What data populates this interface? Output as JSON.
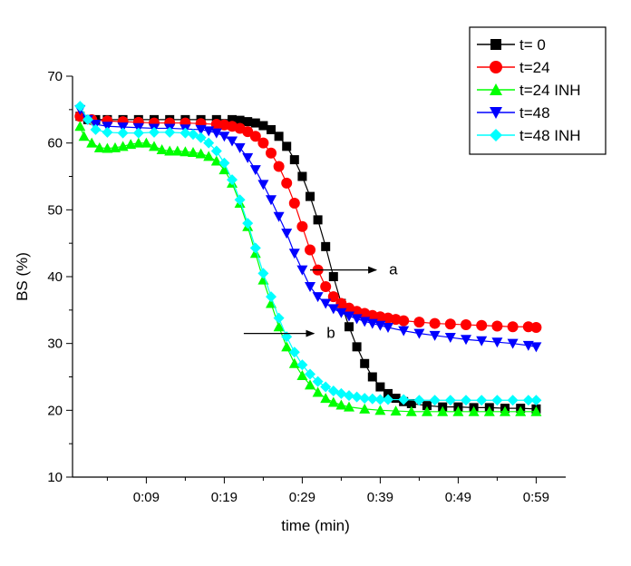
{
  "chart_data": {
    "type": "scatter",
    "xlabel": "time (min)",
    "ylabel": "BS (%)",
    "xlim": [
      0,
      60
    ],
    "ylim": [
      10,
      70
    ],
    "y_ticks": [
      10,
      20,
      30,
      40,
      50,
      60,
      70
    ],
    "x_ticks": [
      {
        "value": 9,
        "label": "0:09"
      },
      {
        "value": 19,
        "label": "0:19"
      },
      {
        "value": 29,
        "label": "0:29"
      },
      {
        "value": 39,
        "label": "0:39"
      },
      {
        "value": 49,
        "label": "0:49"
      },
      {
        "value": 59,
        "label": "0:59"
      }
    ],
    "grid": false,
    "legend_position": "top-right",
    "series": [
      {
        "name": "t= 0",
        "color": "#000000",
        "marker": "square",
        "x": [
          0.5,
          1.5,
          2.5,
          4,
          6,
          8,
          10,
          12,
          14,
          16,
          18,
          20,
          21,
          22,
          23,
          24,
          25,
          26,
          27,
          28,
          29,
          30,
          31,
          32,
          33,
          34,
          35,
          36,
          37,
          38,
          39,
          40,
          41,
          42,
          43,
          45,
          47,
          49,
          51,
          53,
          55,
          57,
          59
        ],
        "y": [
          64,
          63.5,
          63.5,
          63.5,
          63.5,
          63.5,
          63.5,
          63.5,
          63.5,
          63.5,
          63.5,
          63.5,
          63.4,
          63.2,
          63,
          62.6,
          62,
          61,
          59.5,
          57.5,
          55,
          52,
          48.5,
          44.5,
          40,
          36,
          32.5,
          29.5,
          27,
          25,
          23.5,
          22.5,
          21.8,
          21.3,
          21,
          20.7,
          20.5,
          20.5,
          20.4,
          20.4,
          20.3,
          20.3,
          20.2
        ]
      },
      {
        "name": "t=24",
        "color": "#ff0000",
        "marker": "circle",
        "x": [
          0.5,
          2,
          4,
          6,
          8,
          10,
          12,
          14,
          16,
          18,
          19,
          20,
          21,
          22,
          23,
          24,
          25,
          26,
          27,
          28,
          29,
          30,
          31,
          32,
          33,
          34,
          35,
          36,
          37,
          38,
          39,
          40,
          41,
          42,
          44,
          46,
          48,
          50,
          52,
          54,
          56,
          58,
          59
        ],
        "y": [
          64,
          63.5,
          63.3,
          63.2,
          63.1,
          63,
          63,
          63,
          62.9,
          62.8,
          62.7,
          62.5,
          62.2,
          61.7,
          61,
          60,
          58.5,
          56.5,
          54,
          51,
          47.5,
          44,
          41,
          38.5,
          37,
          36,
          35.3,
          34.8,
          34.5,
          34.2,
          34,
          33.8,
          33.6,
          33.4,
          33.2,
          33,
          32.9,
          32.8,
          32.7,
          32.6,
          32.5,
          32.5,
          32.4
        ]
      },
      {
        "name": "t=24 INH",
        "color": "#00ff00",
        "marker": "triangle-up",
        "x": [
          0.5,
          1,
          2,
          3,
          4,
          5,
          6,
          7,
          8,
          9,
          10,
          11,
          12,
          13,
          14,
          15,
          16,
          17,
          18,
          19,
          20,
          21,
          22,
          23,
          24,
          25,
          26,
          27,
          28,
          29,
          30,
          31,
          32,
          33,
          34,
          35,
          37,
          39,
          41,
          43,
          45,
          47,
          49,
          51,
          53,
          55,
          57,
          59
        ],
        "y": [
          62.5,
          61,
          60,
          59.3,
          59.2,
          59.3,
          59.5,
          59.8,
          60,
          60,
          59.5,
          59,
          58.8,
          58.8,
          58.7,
          58.6,
          58.4,
          58,
          57.3,
          56,
          54,
          51,
          47.5,
          43.5,
          39.5,
          36,
          32.5,
          29.5,
          27,
          25.2,
          23.8,
          22.7,
          21.8,
          21.2,
          20.8,
          20.5,
          20.2,
          20,
          19.9,
          19.8,
          19.8,
          19.8,
          19.8,
          19.8,
          19.8,
          19.8,
          19.8,
          19.8
        ]
      },
      {
        "name": "t=48",
        "color": "#0000ff",
        "marker": "triangle-down",
        "x": [
          0.5,
          1.5,
          2.5,
          4,
          6,
          8,
          10,
          12,
          14,
          16,
          17,
          18,
          19,
          20,
          21,
          22,
          23,
          24,
          25,
          26,
          27,
          28,
          29,
          30,
          31,
          32,
          33,
          34,
          35,
          36,
          37,
          38,
          39,
          40,
          42,
          44,
          46,
          48,
          50,
          52,
          54,
          56,
          58,
          59
        ],
        "y": [
          65,
          63.5,
          62.8,
          62.5,
          62.4,
          62.3,
          62.2,
          62.2,
          62.1,
          62,
          61.8,
          61.5,
          61,
          60.3,
          59.3,
          57.8,
          56,
          53.8,
          51.5,
          49,
          46.5,
          43.5,
          41,
          38.5,
          37,
          36,
          35.2,
          34.6,
          34.1,
          33.7,
          33.3,
          33,
          32.7,
          32.4,
          31.9,
          31.5,
          31.2,
          30.9,
          30.6,
          30.4,
          30.2,
          30,
          29.7,
          29.5
        ]
      },
      {
        "name": "t=48 INH",
        "color": "#00ffff",
        "marker": "diamond",
        "x": [
          0.5,
          1.5,
          2.5,
          4,
          6,
          8,
          10,
          12,
          14,
          15,
          16,
          17,
          18,
          19,
          20,
          21,
          22,
          23,
          24,
          25,
          26,
          27,
          28,
          29,
          30,
          31,
          32,
          33,
          34,
          35,
          36,
          37,
          38,
          39,
          40,
          42,
          44,
          46,
          48,
          50,
          52,
          54,
          56,
          58,
          59
        ],
        "y": [
          65.5,
          63.5,
          62,
          61.6,
          61.5,
          61.5,
          61.6,
          61.6,
          61.5,
          61.3,
          60.8,
          60,
          58.8,
          57,
          54.5,
          51.5,
          48,
          44.3,
          40.5,
          37,
          33.8,
          31,
          28.7,
          26.8,
          25.4,
          24.3,
          23.5,
          22.9,
          22.5,
          22.2,
          22,
          21.8,
          21.7,
          21.6,
          21.6,
          21.6,
          21.5,
          21.5,
          21.5,
          21.5,
          21.5,
          21.5,
          21.5,
          21.5,
          21.5
        ]
      }
    ],
    "annotations": [
      {
        "text": "a",
        "arrow_from": [
          30,
          41
        ],
        "arrow_to": [
          38.5,
          41
        ]
      },
      {
        "text": "b",
        "arrow_from": [
          21.5,
          31.5
        ],
        "arrow_to": [
          30.5,
          31.5
        ]
      }
    ]
  }
}
